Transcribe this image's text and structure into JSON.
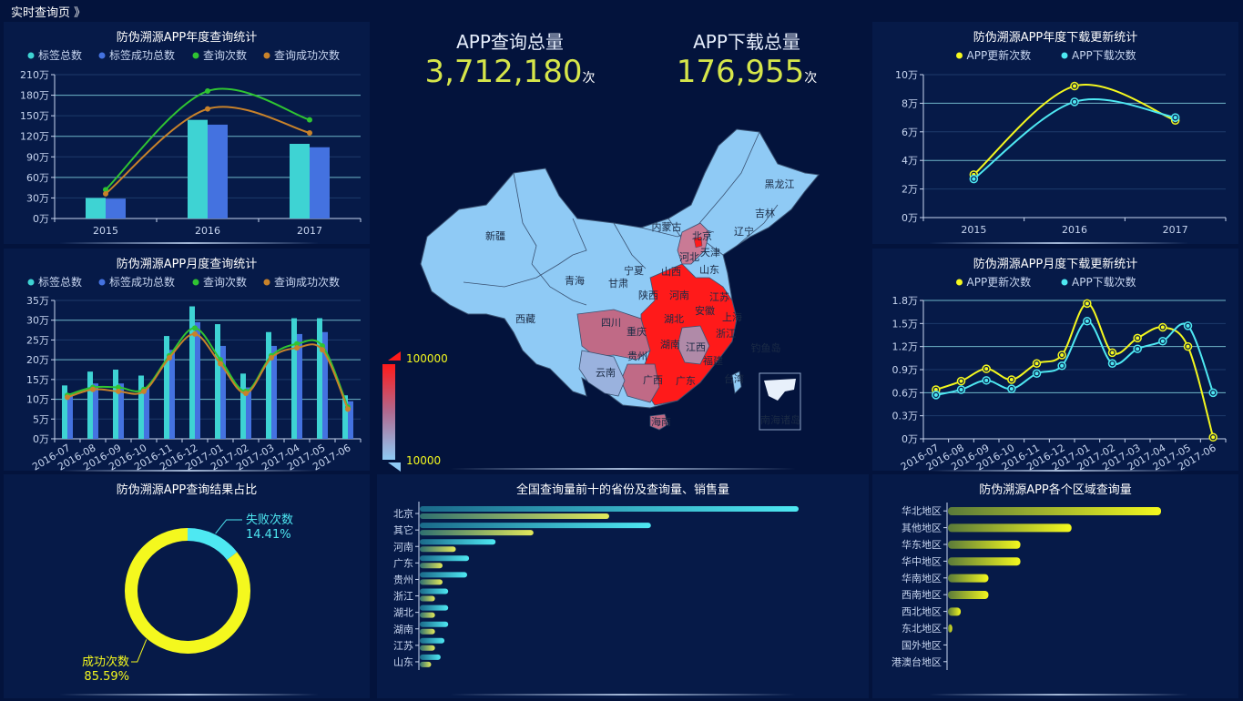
{
  "breadcrumb": "实时查询页 》",
  "stats": {
    "query_label": "APP查询总量",
    "query_value": "3,712,180",
    "query_unit": "次",
    "download_label": "APP下载总量",
    "download_value": "176,955",
    "download_unit": "次"
  },
  "colors": {
    "bg": "#03133c",
    "panel": "#061a48",
    "cyan": "#3ed3d3",
    "blue": "#4472e0",
    "green": "#2fc432",
    "orange": "#c8822a",
    "yellow": "#f4f81e",
    "cyan2": "#4ee8f2"
  },
  "map": {
    "legend_max": "100000",
    "legend_min": "10000",
    "labels": [
      "新疆",
      "西藏",
      "青海",
      "甘肃",
      "宁夏",
      "内蒙古",
      "黑龙江",
      "吉林",
      "辽宁",
      "北京",
      "天津",
      "河北",
      "山西",
      "山东",
      "陕西",
      "河南",
      "江苏",
      "安徽",
      "上海",
      "浙江",
      "四川",
      "湖北",
      "重庆",
      "湖南",
      "江西",
      "贵州",
      "福建",
      "云南",
      "广西",
      "广东",
      "台湾",
      "海南",
      "钓鱼岛",
      "南海诸岛"
    ]
  },
  "chart_data": [
    {
      "id": "yearly_query",
      "type": "bar",
      "title": "防伪溯源APP年度查询统计",
      "categories": [
        "2015",
        "2016",
        "2017"
      ],
      "y_ticks": [
        "0万",
        "30万",
        "60万",
        "90万",
        "120万",
        "150万",
        "180万",
        "210万"
      ],
      "ylim": [
        0,
        210
      ],
      "series": [
        {
          "name": "标签总数",
          "type": "bar",
          "color": "#3ed3d3",
          "values": [
            30,
            144,
            109
          ]
        },
        {
          "name": "标签成功总数",
          "type": "bar",
          "color": "#4472e0",
          "values": [
            29,
            137,
            104
          ]
        },
        {
          "name": "查询次数",
          "type": "line",
          "color": "#2fc432",
          "values": [
            42,
            186,
            144
          ]
        },
        {
          "name": "查询成功次数",
          "type": "line",
          "color": "#c8822a",
          "values": [
            36,
            160,
            125
          ]
        }
      ],
      "legend": "top"
    },
    {
      "id": "monthly_query",
      "type": "bar",
      "title": "防伪溯源APP月度查询统计",
      "categories": [
        "2016-07",
        "2016-08",
        "2016-09",
        "2016-10",
        "2016-11",
        "2016-12",
        "2017-01",
        "2017-02",
        "2017-03",
        "2017-04",
        "2017-05",
        "2017-06"
      ],
      "y_ticks": [
        "0万",
        "5万",
        "10万",
        "15万",
        "20万",
        "25万",
        "30万",
        "35万"
      ],
      "ylim": [
        0,
        35
      ],
      "series": [
        {
          "name": "标签总数",
          "type": "bar",
          "color": "#3ed3d3",
          "values": [
            13.5,
            17,
            17.5,
            16,
            26,
            33.5,
            29,
            16.5,
            27,
            30.5,
            30.5,
            11
          ]
        },
        {
          "name": "标签成功总数",
          "type": "bar",
          "color": "#4472e0",
          "values": [
            11.5,
            14,
            14,
            13,
            22.5,
            29.5,
            23.5,
            13,
            23.5,
            26.5,
            27,
            9.5
          ]
        },
        {
          "name": "查询次数",
          "type": "line",
          "color": "#2fc432",
          "values": [
            11,
            13,
            13,
            12.5,
            21,
            28,
            20,
            12,
            21,
            24,
            23.5,
            8
          ]
        },
        {
          "name": "查询成功次数",
          "type": "line",
          "color": "#c8822a",
          "values": [
            10.5,
            12.5,
            12,
            12,
            20.5,
            26.5,
            19,
            11.5,
            20.5,
            23,
            22.5,
            7.5
          ]
        }
      ],
      "legend": "top"
    },
    {
      "id": "result_ratio",
      "type": "pie",
      "title": "防伪溯源APP查询结果占比",
      "slices": [
        {
          "name": "失败次数",
          "value": 14.41,
          "label": "14.41%",
          "color": "#4ee8f2"
        },
        {
          "name": "成功次数",
          "value": 85.59,
          "label": "85.59%",
          "color": "#f4f81e"
        }
      ]
    },
    {
      "id": "top10_provinces",
      "type": "bar",
      "orientation": "horizontal",
      "title": "全国查询量前十的省份及查询量、销售量",
      "categories": [
        "北京",
        "其它",
        "河南",
        "广东",
        "贵州",
        "浙江",
        "湖北",
        "湖南",
        "江苏",
        "山东"
      ],
      "series": [
        {
          "name": "查询量",
          "color": "#4ee8f2",
          "values": [
            100,
            61,
            20,
            13,
            12.5,
            7.5,
            7.5,
            7.5,
            6.5,
            5.5
          ]
        },
        {
          "name": "销售量",
          "color": "#e2e85a",
          "values": [
            50,
            30,
            9.5,
            6,
            6,
            4,
            4,
            4,
            4,
            3
          ]
        }
      ]
    },
    {
      "id": "yearly_download",
      "type": "line",
      "title": "防伪溯源APP年度下载更新统计",
      "categories": [
        "2015",
        "2016",
        "2017"
      ],
      "y_ticks": [
        "0万",
        "2万",
        "4万",
        "6万",
        "8万",
        "10万"
      ],
      "ylim": [
        0,
        10
      ],
      "series": [
        {
          "name": "APP更新次数",
          "color": "#f4f81e",
          "values": [
            3.0,
            9.2,
            6.8
          ]
        },
        {
          "name": "APP下载次数",
          "color": "#4ee8f2",
          "values": [
            2.7,
            8.1,
            7.0
          ]
        }
      ],
      "legend": "top"
    },
    {
      "id": "monthly_download",
      "type": "line",
      "title": "防伪溯源APP月度下载更新统计",
      "categories": [
        "2016-07",
        "2016-08",
        "2016-09",
        "2016-10",
        "2016-11",
        "2016-12",
        "2017-01",
        "2017-02",
        "2017-03",
        "2017-04",
        "2017-05",
        "2017-06"
      ],
      "y_ticks": [
        "0万",
        "0.3万",
        "0.6万",
        "0.9万",
        "1.2万",
        "1.5万",
        "1.8万"
      ],
      "ylim": [
        0,
        1.8
      ],
      "series": [
        {
          "name": "APP更新次数",
          "color": "#f4f81e",
          "values": [
            0.64,
            0.75,
            0.91,
            0.77,
            0.98,
            1.09,
            1.76,
            1.12,
            1.31,
            1.45,
            1.2,
            0.02
          ]
        },
        {
          "name": "APP下载次数",
          "color": "#4ee8f2",
          "values": [
            0.57,
            0.64,
            0.76,
            0.65,
            0.85,
            0.95,
            1.53,
            0.98,
            1.17,
            1.27,
            1.47,
            0.6
          ]
        }
      ],
      "legend": "top"
    },
    {
      "id": "region_query",
      "type": "bar",
      "orientation": "horizontal",
      "title": "防伪溯源APP各个区域查询量",
      "categories": [
        "华北地区",
        "其他地区",
        "华东地区",
        "华中地区",
        "华南地区",
        "西南地区",
        "西北地区",
        "东北地区",
        "国外地区",
        "港澳台地区"
      ],
      "series": [
        {
          "name": "查询量",
          "color": "#f4f81e",
          "values": [
            100,
            58,
            34,
            34,
            19,
            19,
            6,
            2,
            0,
            0
          ]
        }
      ]
    }
  ]
}
